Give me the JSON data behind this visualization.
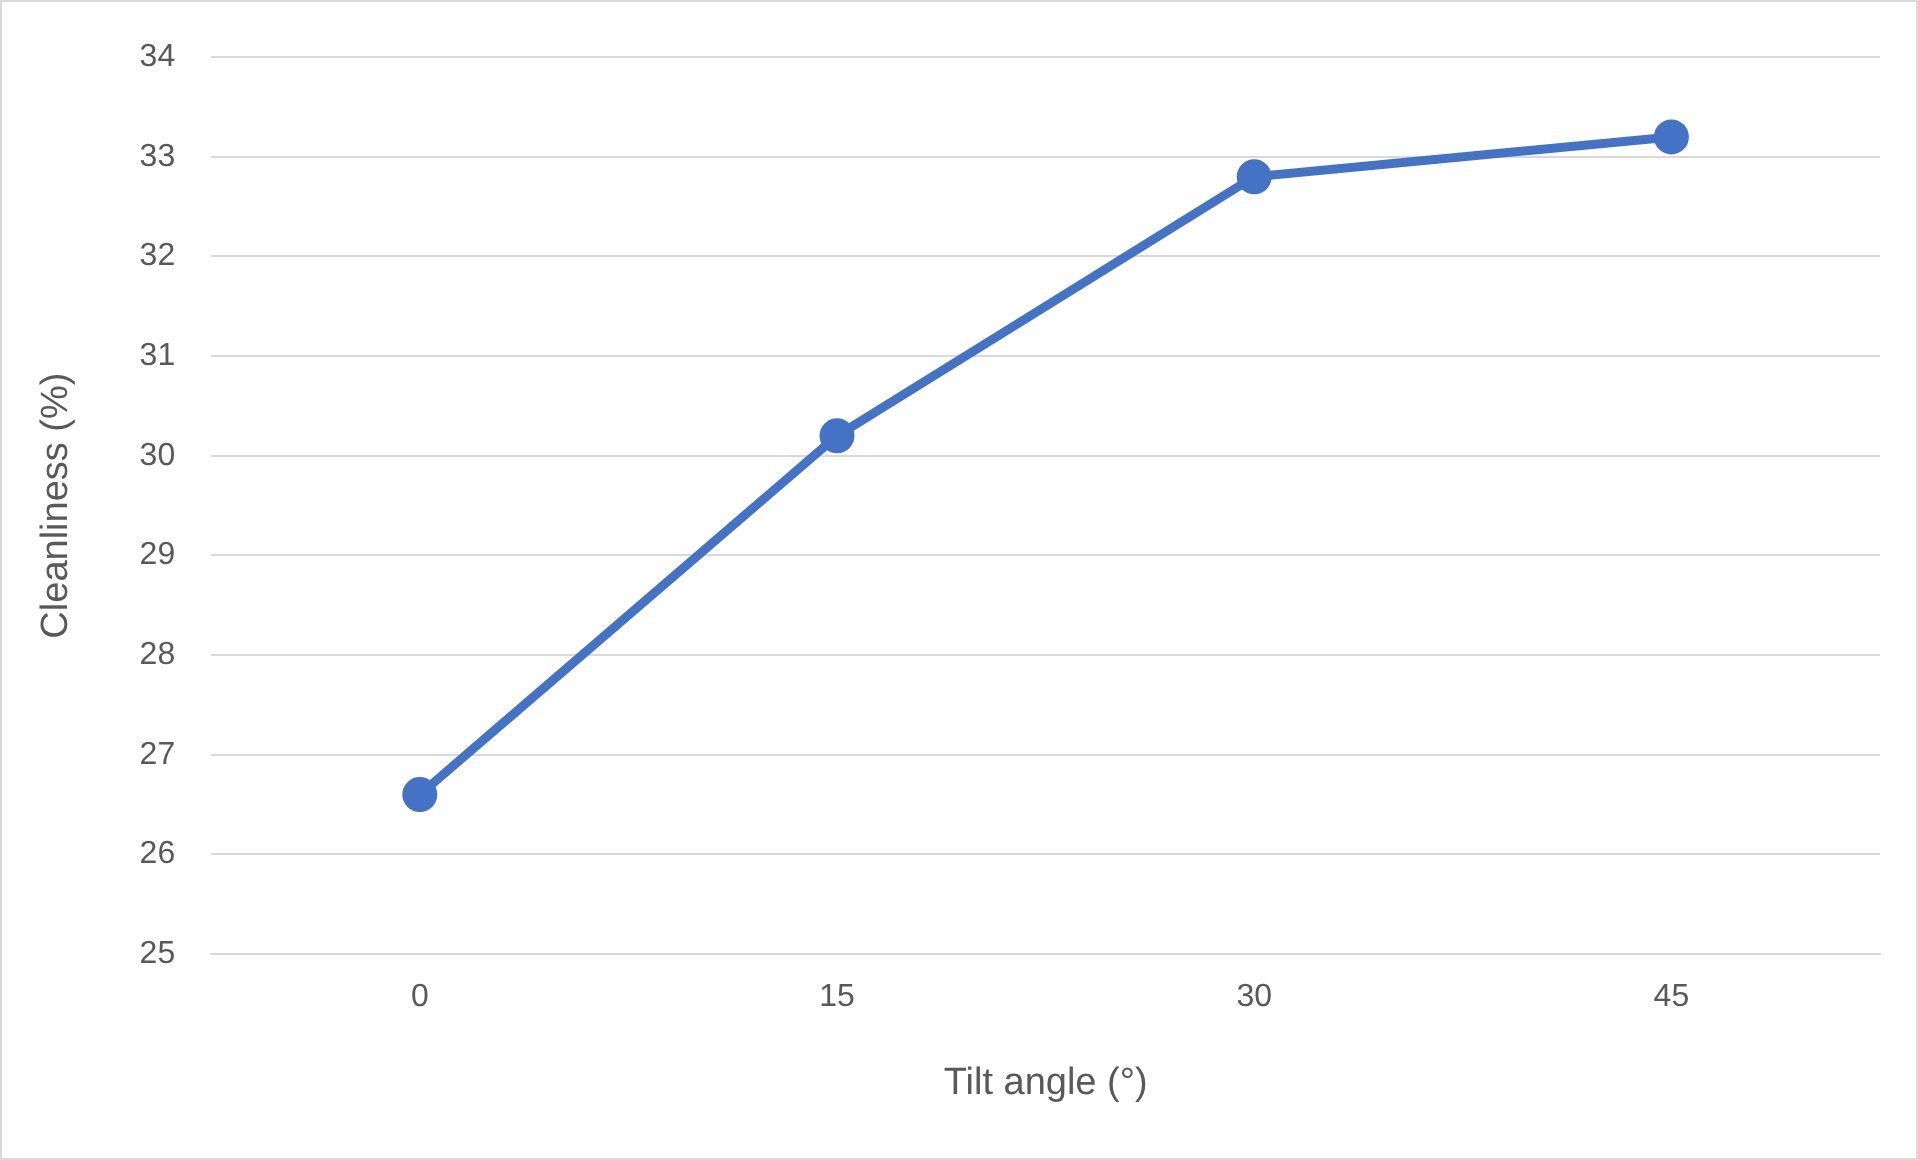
{
  "chart_data": {
    "type": "line",
    "xlabel": "Tilt angle (°)",
    "ylabel": "Cleanliness (%)",
    "categories": [
      "0",
      "15",
      "30",
      "45"
    ],
    "series": [
      {
        "color": "#4472c4",
        "values": [
          26.6,
          30.2,
          32.8,
          33.2
        ]
      }
    ],
    "ylim": [
      25,
      34
    ],
    "yticks": [
      25,
      26,
      27,
      28,
      29,
      30,
      31,
      32,
      33,
      34
    ],
    "grid": "y",
    "legend": false,
    "marker": "circle",
    "line_style": "solid"
  }
}
